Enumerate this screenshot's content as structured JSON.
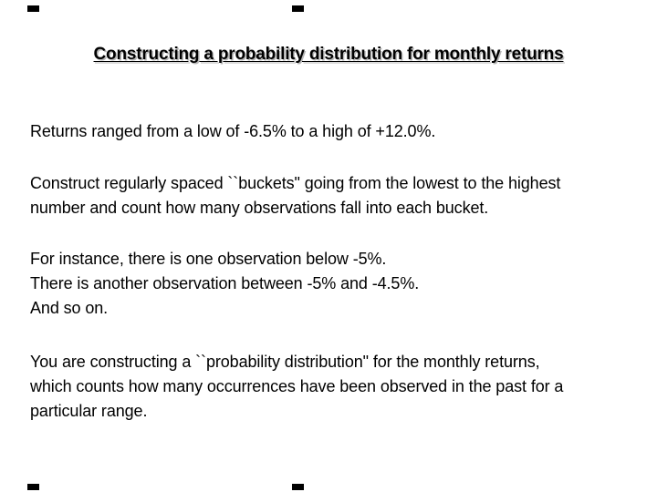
{
  "slide": {
    "title": "Constructing a probability distribution for monthly returns",
    "paragraphs": [
      {
        "lines": [
          "Returns ranged from a low of -6.5% to a high of +12.0%."
        ]
      },
      {
        "lines": [
          "Construct regularly spaced ``buckets\" going from the lowest to the highest",
          "number and count how many observations fall into each bucket."
        ]
      },
      {
        "lines": [
          "For instance, there is one observation below -5%.",
          "There is another observation between -5% and -4.5%.",
          "And so on."
        ]
      },
      {
        "lines": [
          "You are constructing a ``probability distribution\" for the monthly returns,",
          "which counts how many occurrences have been observed in the past for a",
          "particular range."
        ]
      }
    ],
    "colors": {
      "background": "#ffffff",
      "text": "#000000",
      "corner_mark": "#000000"
    }
  }
}
